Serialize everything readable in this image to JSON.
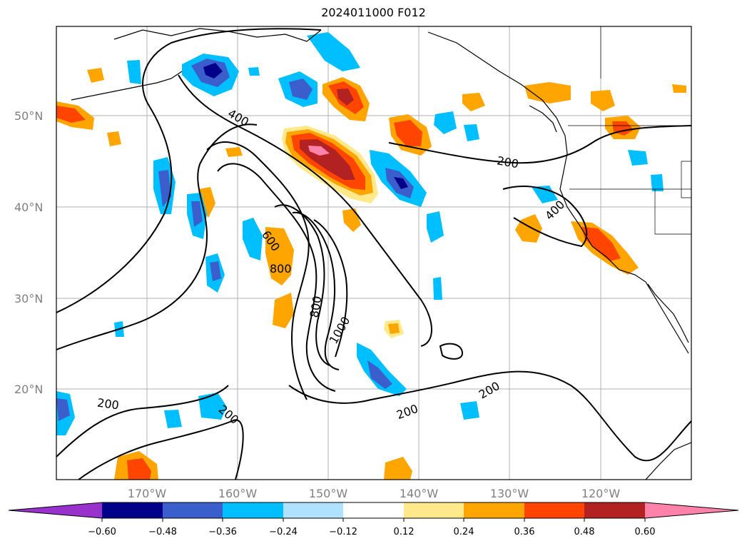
{
  "title": "2024011000 F012",
  "map": {
    "lat_labels": [
      "50°N",
      "40°N",
      "30°N",
      "20°N"
    ],
    "lon_labels": [
      "170°W",
      "160°W",
      "150°W",
      "140°W",
      "130°W",
      "120°W"
    ],
    "contour_labels": [
      "400",
      "200",
      "400",
      "600",
      "800",
      "800",
      "1000",
      "200",
      "200",
      "200",
      "200"
    ]
  },
  "colorbar": {
    "ticks": [
      "−0.60",
      "−0.48",
      "−0.36",
      "−0.24",
      "−0.12",
      "0.12",
      "0.24",
      "0.36",
      "0.48",
      "0.60"
    ],
    "colors": [
      "#9932cc",
      "#00008b",
      "#3a5fcd",
      "#00bfff",
      "#b0e2ff",
      "#ffffff",
      "#ffe98a",
      "#ffa500",
      "#ff4500",
      "#b22222",
      "#ff82ab"
    ]
  }
}
